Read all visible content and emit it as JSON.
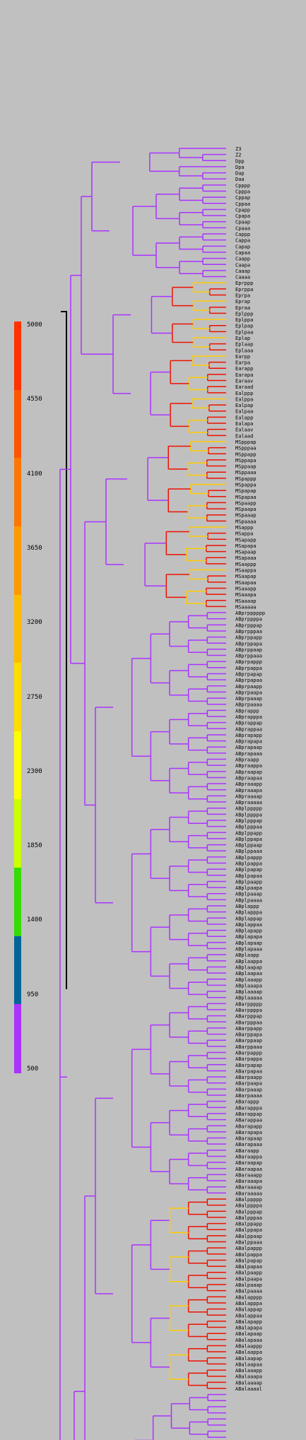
{
  "legend": {
    "ticks": [
      "5000",
      "4550",
      "4100",
      "3650",
      "3200",
      "2750",
      "2300",
      "1850",
      "1400",
      "950",
      "500"
    ],
    "colors": [
      "#ff3300",
      "#ff5500",
      "#ff7700",
      "#ff9900",
      "#ffbb00",
      "#ffdd00",
      "#ffff00",
      "#ccff00",
      "#33dd00",
      "#006699",
      "#aa33ff"
    ]
  },
  "colors": {
    "branch": "#aa33ff",
    "late": "#ee1100",
    "mid": "#ffcc00",
    "early": "#0033cc",
    "green": "#44cc00",
    "background": "#c0c0c0"
  },
  "leaves": [
    "Z3",
    "Z2",
    "Dpp",
    "Dpa",
    "Dap",
    "Daa",
    "Cpppp",
    "Cpppa",
    "Cppap",
    "Cppaa",
    "Cpapp",
    "Cpapa",
    "Cpaap",
    "Cpaaa",
    "Cappp",
    "Cappa",
    "Capap",
    "Capaa",
    "Caapp",
    "Caapa",
    "Caaap",
    "Caaaa",
    "Eprppp",
    "Eprppa",
    "Eprpa",
    "Eprap",
    "Epraa",
    "Eplppp",
    "Eplppa",
    "Eplpap",
    "Eplpaa",
    "Eplap",
    "Eplaap",
    "Eplaaa",
    "Earpp",
    "Earpa",
    "Earapp",
    "Earapa",
    "Earaav",
    "Earaad",
    "Ealppp",
    "Ealppa",
    "Ealpap",
    "Ealpaa",
    "Ealapp",
    "Ealapa",
    "Ealaav",
    "Ealaad",
    "MSpppap",
    "MSpppaa",
    "MSppapp",
    "MSppapa",
    "MSppaap",
    "MSppaaa",
    "MSpappp",
    "MSpappa",
    "MSpapap",
    "MSpapaa",
    "MSpaapp",
    "MSpaapa",
    "MSpaaap",
    "MSpaaaa",
    "MSappp",
    "MSappa",
    "MSapapp",
    "MSapapa",
    "MSapaap",
    "MSapaaa",
    "MSaappp",
    "MSaappa",
    "MSaapap",
    "MSaapaa",
    "MSaaapp",
    "MSaaapa",
    "MSaaaap",
    "MSaaaaa",
    "ABprpppppp",
    "ABprppppa",
    "ABprpppap",
    "ABprpppaa",
    "ABprppapp",
    "ABprppapa",
    "ABprppaap",
    "ABprppaaa",
    "ABprpappp",
    "ABprpappa",
    "ABprpapap",
    "ABprpapaa",
    "ABprpaapp",
    "ABprpaapa",
    "ABprpaaap",
    "ABprpaaaa",
    "ABprappp",
    "ABprapppa",
    "ABprappap",
    "ABprappaa",
    "ABprapapp",
    "ABprapapa",
    "ABprapaap",
    "ABprapaaa",
    "ABpraapp",
    "ABpraappa",
    "ABpraapap",
    "ABpraapaa",
    "ABpraaapp",
    "ABpraaapa",
    "ABpraaaap",
    "ABpraaaaa",
    "ABplppppp",
    "ABplppppa",
    "ABplpppap",
    "ABplpppaa",
    "ABplppapp",
    "ABplppapa",
    "ABplppaap",
    "ABplppaaa",
    "ABplpappp",
    "ABplpappa",
    "ABplpapap",
    "ABplpapaa",
    "ABplpaapp",
    "ABplpaapa",
    "ABplpaaap",
    "ABplpaaaa",
    "ABplappp",
    "ABplapppa",
    "ABplappap",
    "ABplappaa",
    "ABplapapp",
    "ABplapapa",
    "ABplapaap",
    "ABplapaaa",
    "ABplaapp",
    "ABplaappa",
    "ABplaapap",
    "ABplaapaa",
    "ABplaaapp",
    "ABplaaapa",
    "ABplaaaap",
    "ABplaaaaa",
    "ABarppppp",
    "ABarppppa",
    "ABarpppap",
    "ABarpppaa",
    "ABarppapp",
    "ABarppapa",
    "ABarppaap",
    "ABarppaaa",
    "ABarpappp",
    "ABarpappa",
    "ABarpapap",
    "ABarpapaa",
    "ABarpaapp",
    "ABarpaapa",
    "ABarpaaap",
    "ABarpaaaa",
    "ABarappp",
    "ABarapppa",
    "ABarappap",
    "ABarappaa",
    "ABarapapp",
    "ABarapapa",
    "ABarapaap",
    "ABarapaaa",
    "ABaraapp",
    "ABaraappa",
    "ABaraapap",
    "ABaraapaa",
    "ABaraaapp",
    "ABaraaapa",
    "ABaraaaap",
    "ABaraaaaa",
    "ABalppppp",
    "ABalppppa",
    "ABalpppap",
    "ABalpppaa",
    "ABalppapp",
    "ABalppapa",
    "ABalppaap",
    "ABalppaaa",
    "ABalpappp",
    "ABalpappa",
    "ABalpapap",
    "ABalpapaa",
    "ABalpaapp",
    "ABalpaapa",
    "ABalpaaap",
    "ABalpaaaa",
    "ABalapppp",
    "ABalapppa",
    "ABalappap",
    "ABalappaa",
    "ABalapapp",
    "ABalapapa",
    "ABalapaap",
    "ABalapaaa",
    "ABalaappp",
    "ABalaappa",
    "ABalaapap",
    "ABalaapaa",
    "ABalaaapp",
    "ABalaaapa",
    "ABalaaaap",
    "ABalaaaal"
  ]
}
